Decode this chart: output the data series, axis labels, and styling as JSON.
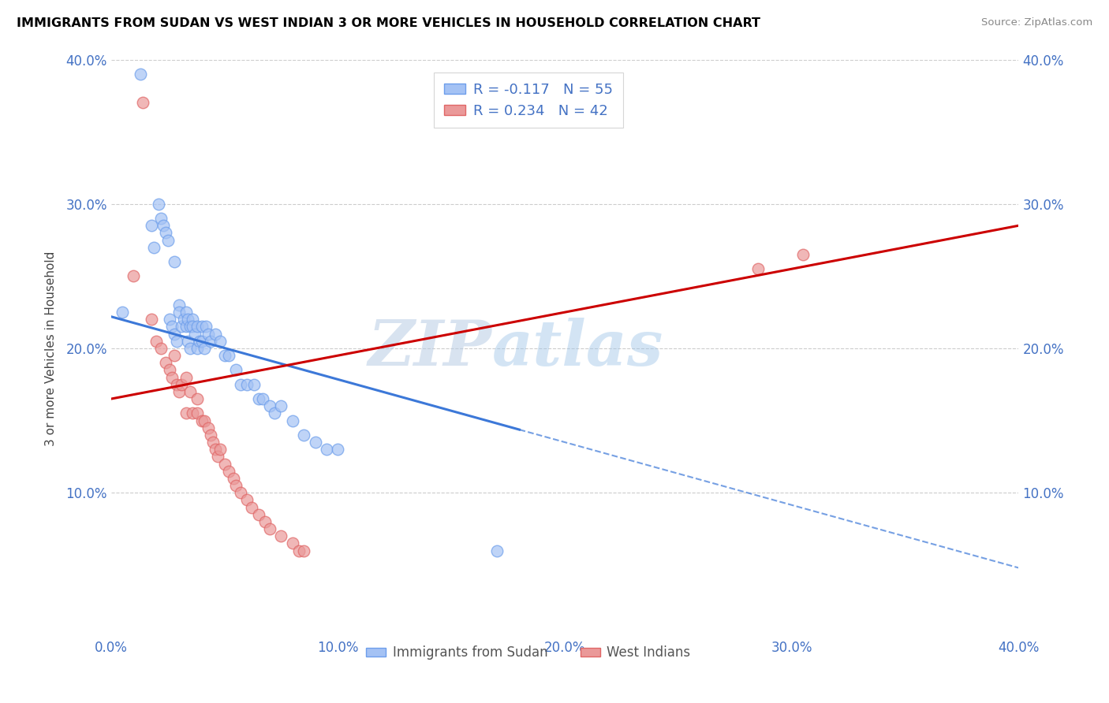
{
  "title": "IMMIGRANTS FROM SUDAN VS WEST INDIAN 3 OR MORE VEHICLES IN HOUSEHOLD CORRELATION CHART",
  "source": "Source: ZipAtlas.com",
  "ylabel": "3 or more Vehicles in Household",
  "xlim": [
    0.0,
    0.4
  ],
  "ylim": [
    0.0,
    0.4
  ],
  "xtick_labels": [
    "0.0%",
    "",
    "10.0%",
    "",
    "20.0%",
    "",
    "30.0%",
    "",
    "40.0%"
  ],
  "xtick_vals": [
    0.0,
    0.05,
    0.1,
    0.15,
    0.2,
    0.25,
    0.3,
    0.35,
    0.4
  ],
  "ytick_labels": [
    "10.0%",
    "20.0%",
    "30.0%",
    "40.0%"
  ],
  "ytick_vals": [
    0.1,
    0.2,
    0.3,
    0.4
  ],
  "legend_label1": "R = -0.117   N = 55",
  "legend_label2": "R = 0.234   N = 42",
  "legend_series1": "Immigrants from Sudan",
  "legend_series2": "West Indians",
  "blue_color": "#a4c2f4",
  "pink_color": "#ea9999",
  "blue_edge_color": "#6d9eeb",
  "pink_edge_color": "#e06666",
  "blue_line_color": "#3c78d8",
  "pink_line_color": "#cc0000",
  "watermark_zip": "ZIP",
  "watermark_atlas": "atlas",
  "title_color": "#000000",
  "R1": -0.117,
  "R2": 0.234,
  "blue_scatter_x": [
    0.005,
    0.013,
    0.018,
    0.019,
    0.021,
    0.022,
    0.023,
    0.024,
    0.025,
    0.026,
    0.027,
    0.028,
    0.028,
    0.029,
    0.03,
    0.03,
    0.031,
    0.032,
    0.033,
    0.033,
    0.034,
    0.034,
    0.035,
    0.035,
    0.036,
    0.036,
    0.037,
    0.038,
    0.038,
    0.039,
    0.04,
    0.04,
    0.041,
    0.042,
    0.043,
    0.044,
    0.046,
    0.048,
    0.05,
    0.052,
    0.055,
    0.057,
    0.06,
    0.063,
    0.065,
    0.067,
    0.07,
    0.072,
    0.075,
    0.08,
    0.085,
    0.09,
    0.095,
    0.1,
    0.17
  ],
  "blue_scatter_y": [
    0.225,
    0.39,
    0.285,
    0.27,
    0.3,
    0.29,
    0.285,
    0.28,
    0.275,
    0.22,
    0.215,
    0.21,
    0.26,
    0.205,
    0.23,
    0.225,
    0.215,
    0.22,
    0.215,
    0.225,
    0.22,
    0.205,
    0.215,
    0.2,
    0.22,
    0.215,
    0.21,
    0.215,
    0.2,
    0.205,
    0.215,
    0.205,
    0.2,
    0.215,
    0.21,
    0.205,
    0.21,
    0.205,
    0.195,
    0.195,
    0.185,
    0.175,
    0.175,
    0.175,
    0.165,
    0.165,
    0.16,
    0.155,
    0.16,
    0.15,
    0.14,
    0.135,
    0.13,
    0.13,
    0.06
  ],
  "pink_scatter_x": [
    0.01,
    0.014,
    0.018,
    0.02,
    0.022,
    0.024,
    0.026,
    0.027,
    0.028,
    0.029,
    0.03,
    0.031,
    0.033,
    0.033,
    0.035,
    0.036,
    0.038,
    0.038,
    0.04,
    0.041,
    0.043,
    0.044,
    0.045,
    0.046,
    0.047,
    0.048,
    0.05,
    0.052,
    0.054,
    0.055,
    0.057,
    0.06,
    0.062,
    0.065,
    0.068,
    0.07,
    0.075,
    0.08,
    0.083,
    0.085,
    0.285,
    0.305
  ],
  "pink_scatter_y": [
    0.25,
    0.37,
    0.22,
    0.205,
    0.2,
    0.19,
    0.185,
    0.18,
    0.195,
    0.175,
    0.17,
    0.175,
    0.18,
    0.155,
    0.17,
    0.155,
    0.165,
    0.155,
    0.15,
    0.15,
    0.145,
    0.14,
    0.135,
    0.13,
    0.125,
    0.13,
    0.12,
    0.115,
    0.11,
    0.105,
    0.1,
    0.095,
    0.09,
    0.085,
    0.08,
    0.075,
    0.07,
    0.065,
    0.06,
    0.06,
    0.255,
    0.265
  ],
  "blue_trend_x": [
    0.0,
    0.4
  ],
  "blue_trend_y_start": 0.222,
  "blue_trend_y_end": 0.048,
  "blue_trend_solid_x_end": 0.18,
  "pink_trend_x": [
    0.0,
    0.4
  ],
  "pink_trend_y_start": 0.165,
  "pink_trend_y_end": 0.285
}
